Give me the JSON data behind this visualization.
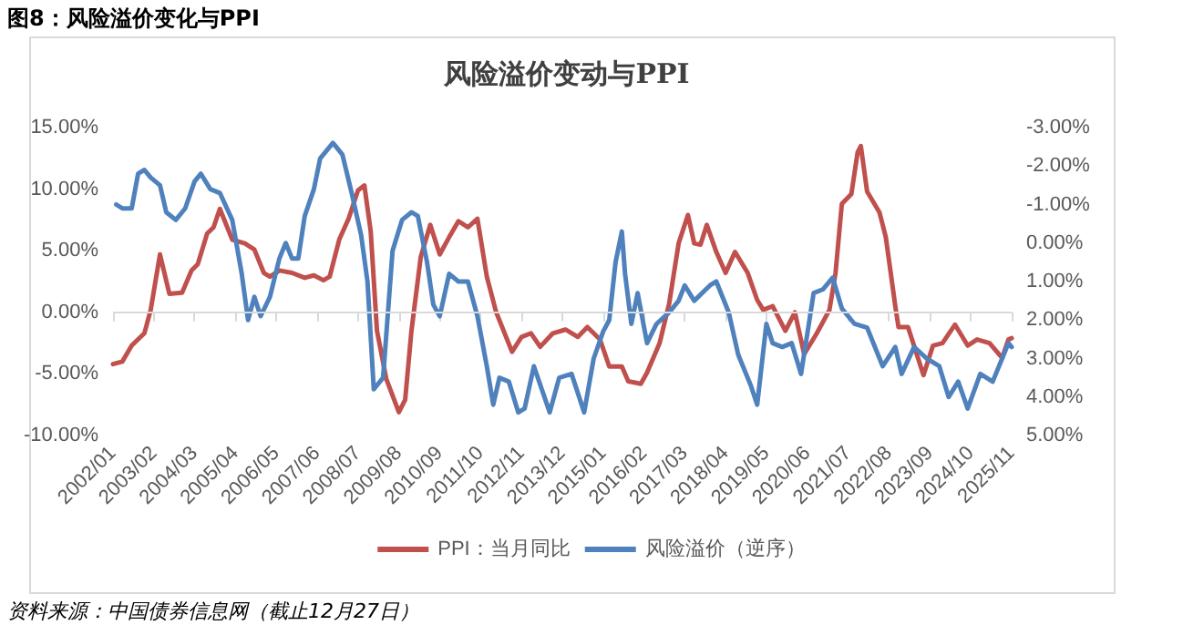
{
  "chart_data": {
    "type": "line",
    "title": "风险溢价变动与PPI",
    "annotations": [
      "图8：风险溢价变化与PPI",
      "资料来源：中国债券信息网（截止12月27日）"
    ],
    "xlim": [
      "2002-01",
      "2025-11"
    ],
    "xticks": [
      {
        "value": "2002-01",
        "label": "2002/01"
      },
      {
        "value": "2003-02",
        "label": "2003/02"
      },
      {
        "value": "2004-03",
        "label": "2004/03"
      },
      {
        "value": "2005-04",
        "label": "2005/04"
      },
      {
        "value": "2006-05",
        "label": "2006/05"
      },
      {
        "value": "2007-06",
        "label": "2007/06"
      },
      {
        "value": "2008-07",
        "label": "2008/07"
      },
      {
        "value": "2009-08",
        "label": "2009/08"
      },
      {
        "value": "2010-09",
        "label": "2010/09"
      },
      {
        "value": "2011-10",
        "label": "2011/10"
      },
      {
        "value": "2012-11",
        "label": "2012/11"
      },
      {
        "value": "2013-12",
        "label": "2013/12"
      },
      {
        "value": "2015-01",
        "label": "2015/01"
      },
      {
        "value": "2016-02",
        "label": "2016/02"
      },
      {
        "value": "2017-03",
        "label": "2017/03"
      },
      {
        "value": "2018-04",
        "label": "2018/04"
      },
      {
        "value": "2019-05",
        "label": "2019/05"
      },
      {
        "value": "2020-06",
        "label": "2020/06"
      },
      {
        "value": "2021-07",
        "label": "2021/07"
      },
      {
        "value": "2022-08",
        "label": "2022/08"
      },
      {
        "value": "2023-09",
        "label": "2023/09"
      },
      {
        "value": "2024-10",
        "label": "2024/10"
      },
      {
        "value": "2025-11",
        "label": "2025/11"
      }
    ],
    "ylim": [
      -10,
      15
    ],
    "yticks": [
      {
        "value": -10,
        "label": "-10.00%"
      },
      {
        "value": -5,
        "label": "-5.00%"
      },
      {
        "value": 0,
        "label": "0.00%"
      },
      {
        "value": 5,
        "label": "5.00%"
      },
      {
        "value": 10,
        "label": "10.00%"
      },
      {
        "value": 15,
        "label": "15.00%"
      }
    ],
    "y2lim": [
      5,
      -3
    ],
    "y2ticks": [
      {
        "value": -3,
        "label": "-3.00%"
      },
      {
        "value": -2,
        "label": "-2.00%"
      },
      {
        "value": -1,
        "label": "-1.00%"
      },
      {
        "value": 0,
        "label": "0.00%"
      },
      {
        "value": 1,
        "label": "1.00%"
      },
      {
        "value": 2,
        "label": "2.00%"
      },
      {
        "value": 3,
        "label": "3.00%"
      },
      {
        "value": 4,
        "label": "4.00%"
      },
      {
        "value": 5,
        "label": "5.00%"
      }
    ],
    "grid": false,
    "ref_lines": [
      {
        "axis": "y",
        "value": 0,
        "color": "#d9d9d9"
      }
    ],
    "legend": "bottom",
    "marker": "none",
    "line_style": "solid",
    "series": [
      {
        "name": "PPI：当月同比",
        "color": "#c0504d",
        "x": [
          "2002-01",
          "2002-04",
          "2002-07",
          "2002-11",
          "2003-01",
          "2003-04",
          "2003-07",
          "2003-11",
          "2004-02",
          "2004-04",
          "2004-07",
          "2004-09",
          "2004-11",
          "2005-03",
          "2005-07",
          "2005-10",
          "2006-01",
          "2006-03",
          "2006-06",
          "2006-10",
          "2007-02",
          "2007-05",
          "2007-08",
          "2007-10",
          "2008-01",
          "2008-04",
          "2008-07",
          "2008-09",
          "2008-11",
          "2009-01",
          "2009-04",
          "2009-08",
          "2009-10",
          "2009-12",
          "2010-03",
          "2010-06",
          "2010-09",
          "2010-12",
          "2011-03",
          "2011-06",
          "2011-09",
          "2011-12",
          "2012-03",
          "2012-08",
          "2012-11",
          "2013-02",
          "2013-05",
          "2013-09",
          "2014-01",
          "2014-05",
          "2014-08",
          "2014-12",
          "2015-03",
          "2015-07",
          "2015-09",
          "2016-01",
          "2016-03",
          "2016-07",
          "2016-10",
          "2017-01",
          "2017-04",
          "2017-06",
          "2017-08",
          "2017-10",
          "2018-01",
          "2018-04",
          "2018-07",
          "2018-11",
          "2019-02",
          "2019-04",
          "2019-07",
          "2019-11",
          "2020-02",
          "2020-05",
          "2020-09",
          "2021-01",
          "2021-03",
          "2021-05",
          "2021-08",
          "2021-10",
          "2021-11",
          "2022-01",
          "2022-05",
          "2022-07",
          "2022-10",
          "2022-11",
          "2023-02",
          "2023-07",
          "2023-10",
          "2024-01",
          "2024-05",
          "2024-09",
          "2024-12",
          "2025-04",
          "2025-08",
          "2025-10",
          "2025-11"
        ],
        "values": [
          -4.2,
          -4.0,
          -2.7,
          -1.7,
          0.2,
          4.7,
          1.5,
          1.6,
          3.4,
          3.9,
          6.4,
          6.9,
          8.4,
          5.9,
          5.6,
          5.1,
          3.2,
          2.9,
          3.4,
          3.2,
          2.8,
          3.0,
          2.6,
          2.9,
          5.9,
          7.6,
          9.9,
          10.3,
          6.6,
          -1.5,
          -5.4,
          -8.1,
          -7.1,
          -1.5,
          4.5,
          7.1,
          4.7,
          6.1,
          7.4,
          6.9,
          7.6,
          2.9,
          0,
          -3.2,
          -2.0,
          -1.7,
          -2.8,
          -1.7,
          -1.4,
          -2.0,
          -1.2,
          -2.2,
          -4.4,
          -4.4,
          -5.6,
          -5.8,
          -4.9,
          -2.5,
          0.7,
          5.6,
          7.9,
          5.6,
          5.5,
          7.1,
          4.9,
          3.2,
          4.9,
          3.2,
          1.0,
          0.2,
          0.5,
          -1.5,
          0,
          -3.4,
          -1.7,
          0.2,
          3.2,
          8.8,
          9.6,
          13.0,
          13.5,
          9.8,
          8.1,
          6.1,
          0.5,
          -1.2,
          -1.2,
          -5.1,
          -2.7,
          -2.5,
          -1.0,
          -2.7,
          -2.2,
          -2.5,
          -3.7,
          -2.2,
          -2.1
        ]
      },
      {
        "name": "风险溢价（逆序）",
        "color": "#4f81bd",
        "axis": "y2",
        "x": [
          "2002-02",
          "2002-04",
          "2002-07",
          "2002-09",
          "2002-11",
          "2003-01",
          "2003-04",
          "2003-06",
          "2003-09",
          "2003-12",
          "2004-03",
          "2004-05",
          "2004-08",
          "2004-11",
          "2005-03",
          "2005-06",
          "2005-08",
          "2005-10",
          "2005-12",
          "2006-03",
          "2006-06",
          "2006-08",
          "2006-10",
          "2006-12",
          "2007-02",
          "2007-05",
          "2007-07",
          "2007-11",
          "2008-02",
          "2008-05",
          "2008-08",
          "2008-10",
          "2008-12",
          "2009-03",
          "2009-06",
          "2009-09",
          "2009-12",
          "2010-02",
          "2010-05",
          "2010-07",
          "2010-09",
          "2010-12",
          "2011-03",
          "2011-06",
          "2011-09",
          "2011-12",
          "2012-02",
          "2012-04",
          "2012-07",
          "2012-10",
          "2012-12",
          "2013-03",
          "2013-08",
          "2013-11",
          "2014-03",
          "2014-07",
          "2014-10",
          "2015-01",
          "2015-03",
          "2015-05",
          "2015-07",
          "2015-08",
          "2015-10",
          "2015-12",
          "2016-03",
          "2016-06",
          "2016-10",
          "2017-01",
          "2017-03",
          "2017-06",
          "2017-11",
          "2018-01",
          "2018-05",
          "2018-08",
          "2018-12",
          "2019-02",
          "2019-05",
          "2019-07",
          "2019-10",
          "2020-01",
          "2020-04",
          "2020-08",
          "2020-11",
          "2021-02",
          "2021-05",
          "2021-09",
          "2022-01",
          "2022-06",
          "2022-10",
          "2022-12",
          "2023-04",
          "2023-08",
          "2023-12",
          "2024-03",
          "2024-06",
          "2024-09",
          "2025-01",
          "2025-05",
          "2025-08",
          "2025-10",
          "2025-11"
        ],
        "values": [
          -1.0,
          -0.9,
          -0.9,
          -1.8,
          -1.9,
          -1.7,
          -1.5,
          -0.8,
          -0.6,
          -0.9,
          -1.6,
          -1.8,
          -1.4,
          -1.3,
          -0.6,
          0.8,
          2.0,
          1.4,
          1.9,
          1.4,
          0.4,
          0.0,
          0.4,
          0.4,
          -0.7,
          -1.4,
          -2.2,
          -2.6,
          -2.3,
          -1.3,
          -0.2,
          1.0,
          3.8,
          3.5,
          0.2,
          -0.6,
          -0.8,
          -0.7,
          0.5,
          1.6,
          1.9,
          0.8,
          1.0,
          1.0,
          1.9,
          3.2,
          4.2,
          3.5,
          3.6,
          4.4,
          4.3,
          3.2,
          4.4,
          3.5,
          3.4,
          4.4,
          3.0,
          2.3,
          2.0,
          0.5,
          -0.3,
          0.8,
          2.1,
          1.3,
          2.6,
          2.1,
          1.8,
          1.5,
          1.1,
          1.5,
          1.1,
          1.0,
          1.8,
          2.9,
          3.7,
          4.2,
          2.1,
          2.6,
          2.7,
          2.6,
          3.4,
          1.3,
          1.2,
          0.9,
          1.7,
          2.1,
          2.2,
          3.2,
          2.7,
          3.4,
          2.7,
          3.0,
          3.2,
          4.0,
          3.6,
          4.3,
          3.4,
          3.6,
          3.0,
          2.6,
          2.7
        ]
      }
    ]
  }
}
